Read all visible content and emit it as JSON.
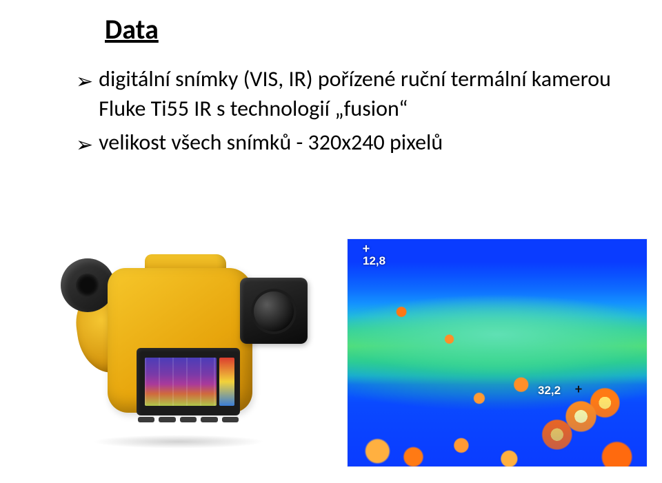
{
  "title": "Data",
  "bullets": [
    {
      "pre": "digitální snímky (VIS, IR) pořízené ruční termální kamerou Fluke Ti55 IR s technologií ",
      "quoted": "fusion",
      "post": ""
    },
    {
      "pre": "velikost všech snímků - 320x240 pixelů",
      "quoted": "",
      "post": ""
    }
  ],
  "thermal": {
    "top_value": "12,8",
    "mid_value": "32,2",
    "colors": {
      "cold": "#0a3cff",
      "cool": "#1fb6e8",
      "mid": "#35d0a0",
      "warm": "#ff8f28",
      "hot": "#fffca3"
    }
  },
  "camera": {
    "model": "Fluke Ti55 IR",
    "body_color": "#e7a50c",
    "screen_palette": [
      "#4b3db8",
      "#a93a9b",
      "#d06a3d",
      "#b0c64a"
    ]
  }
}
